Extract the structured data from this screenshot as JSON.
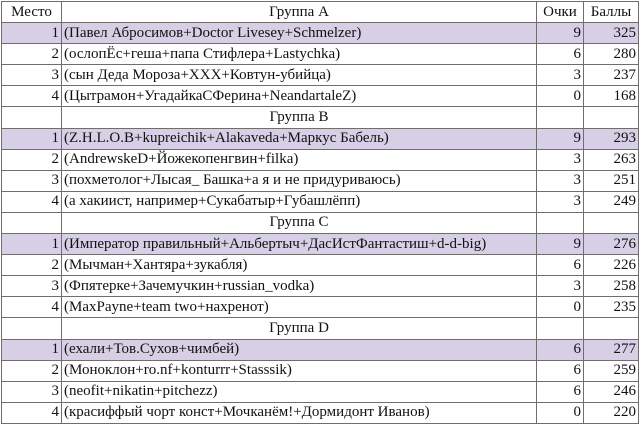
{
  "header": {
    "place": "Место",
    "group_a": "Группа A",
    "points": "Очки",
    "score": "Баллы"
  },
  "highlight_color": "#d7cfe5",
  "groups": [
    {
      "title": "Группа A",
      "rows": [
        {
          "place": "1",
          "team": "(Павел Абросимов+Doctor Livesey+Schmelzer)",
          "points": "9",
          "score": "325"
        },
        {
          "place": "2",
          "team": "(ослопЁс+геша+папа Стифлера+Lastychka)",
          "points": "6",
          "score": "280"
        },
        {
          "place": "3",
          "team": "(сын Деда Мороза+XXX+Ковтун-убийца)",
          "points": "3",
          "score": "237"
        },
        {
          "place": "4",
          "team": "(Цытрамон+УгадайкаСФерина+NeandartaleZ)",
          "points": "0",
          "score": "168"
        }
      ]
    },
    {
      "title": "Группа B",
      "rows": [
        {
          "place": "1",
          "team": "(Z.H.L.O.B+kupreichik+Alakaveda+Маркус Бабель)",
          "points": "9",
          "score": "293"
        },
        {
          "place": "2",
          "team": "(AndrewskeD+Йожекопенгвин+filka)",
          "points": "3",
          "score": "263"
        },
        {
          "place": "3",
          "team": "(похметолог+Лысая_ Башка+а я и не придуриваюсь)",
          "points": "3",
          "score": "251"
        },
        {
          "place": "4",
          "team": "(а хакиист, например+Сукабатыр+Губашлёпп)",
          "points": "3",
          "score": "249"
        }
      ]
    },
    {
      "title": "Группа C",
      "rows": [
        {
          "place": "1",
          "team": "(Император правильный+Альбертыч+ДасИстФантастиш+d-d-big)",
          "points": "9",
          "score": "276"
        },
        {
          "place": "2",
          "team": "(Мычман+Хантяра+зукабля)",
          "points": "6",
          "score": "226"
        },
        {
          "place": "3",
          "team": "(Фпятерке+Зачемучкин+russian_vodka)",
          "points": "3",
          "score": "258"
        },
        {
          "place": "4",
          "team": "(MaxPayne+team two+нахренот)",
          "points": "0",
          "score": "235"
        }
      ]
    },
    {
      "title": "Группа D",
      "rows": [
        {
          "place": "1",
          "team": "(ехали+Тов.Сухов+чимбей)",
          "points": "6",
          "score": "277"
        },
        {
          "place": "2",
          "team": "(Моноклон+ro.nf+konturrr+Stasssik)",
          "points": "6",
          "score": "259"
        },
        {
          "place": "3",
          "team": "(neofit+nikatin+pitchezz)",
          "points": "6",
          "score": "246"
        },
        {
          "place": "4",
          "team": "(красиффый чорт конст+Мочканём!+Дормидонт Иванов)",
          "points": "0",
          "score": "220"
        }
      ]
    }
  ]
}
